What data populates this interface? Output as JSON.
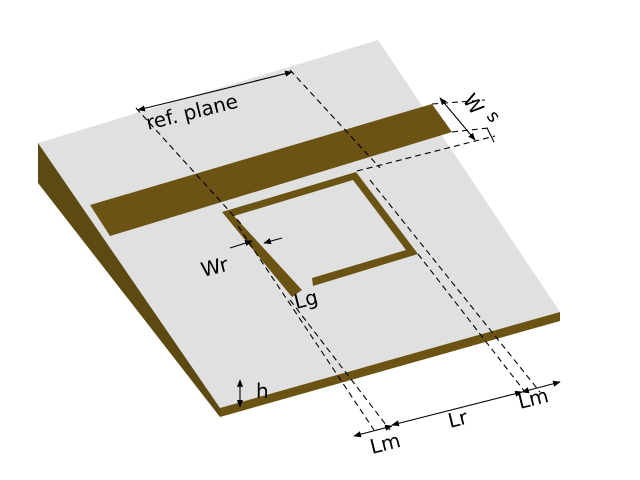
{
  "labels": {
    "ref_plane": "ref. plane",
    "w": "W",
    "s": "s",
    "wr": "Wr",
    "lg": "Lg",
    "h": "h",
    "lm_left": "Lm",
    "lr": "Lr",
    "lm_right": "Lm"
  },
  "colors": {
    "substrate_top": "#e0e0e0",
    "substrate_edge": "#5c4a12",
    "metal": "#6b5313",
    "background": "#ffffff"
  }
}
